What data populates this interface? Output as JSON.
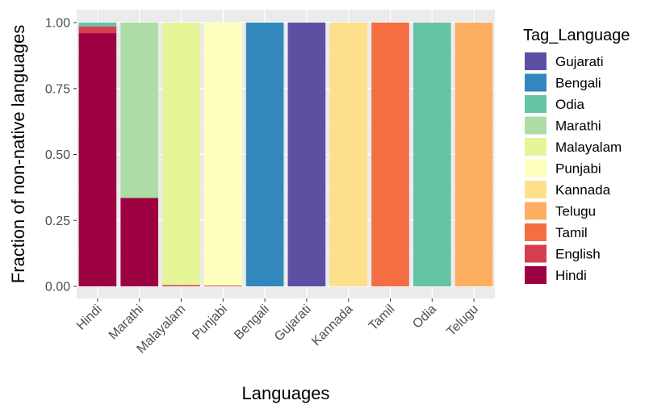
{
  "chart_data": {
    "type": "bar",
    "stacked": true,
    "xlabel": "Languages",
    "ylabel": "Fraction of non-native languages",
    "ylim": [
      0,
      1
    ],
    "yticks": [
      "0.00",
      "0.25",
      "0.50",
      "0.75",
      "1.00"
    ],
    "categories": [
      "Hindi",
      "Marathi",
      "Malayalam",
      "Punjabi",
      "Bengali",
      "Gujarati",
      "Kannada",
      "Tamil",
      "Odia",
      "Telugu"
    ],
    "legend": {
      "title": "Tag_Language",
      "position": "right",
      "entries": [
        "Gujarati",
        "Bengali",
        "Odia",
        "Marathi",
        "Malayalam",
        "Punjabi",
        "Kannada",
        "Telugu",
        "Tamil",
        "English",
        "Hindi"
      ]
    },
    "colors": {
      "Gujarati": "#5e4fa2",
      "Bengali": "#3288bd",
      "Odia": "#66c2a5",
      "Marathi": "#abdda4",
      "Malayalam": "#e6f598",
      "Punjabi": "#ffffbf",
      "Kannada": "#fee08b",
      "Telugu": "#fdae61",
      "Tamil": "#f46d43",
      "English": "#d53e4f",
      "Hindi": "#9e0142"
    },
    "series": [
      {
        "name": "Hindi",
        "values": [
          0.96,
          0.335,
          0.0,
          0.0,
          0,
          0,
          0,
          0,
          0,
          0
        ]
      },
      {
        "name": "English",
        "values": [
          0.025,
          0.0,
          0.005,
          0.003,
          0,
          0,
          0,
          0,
          0,
          0
        ]
      },
      {
        "name": "Tamil",
        "values": [
          0.0,
          0.0,
          0.0,
          0.0,
          0,
          0,
          0,
          1,
          0,
          0
        ]
      },
      {
        "name": "Telugu",
        "values": [
          0.0,
          0.0,
          0.0,
          0.0,
          0,
          0,
          0,
          0,
          0,
          1
        ]
      },
      {
        "name": "Kannada",
        "values": [
          0.0,
          0.0,
          0.0,
          0.0,
          0,
          0,
          1,
          0,
          0,
          0
        ]
      },
      {
        "name": "Punjabi",
        "values": [
          0.0,
          0.0,
          0.0,
          0.997,
          0,
          0,
          0,
          0,
          0,
          0
        ]
      },
      {
        "name": "Malayalam",
        "values": [
          0.0,
          0.0,
          0.995,
          0.0,
          0,
          0,
          0,
          0,
          0,
          0
        ]
      },
      {
        "name": "Marathi",
        "values": [
          0.0,
          0.665,
          0.0,
          0.0,
          0,
          0,
          0,
          0,
          0,
          0
        ]
      },
      {
        "name": "Odia",
        "values": [
          0.015,
          0.0,
          0.0,
          0.0,
          0,
          0,
          0,
          0,
          1,
          0
        ]
      },
      {
        "name": "Bengali",
        "values": [
          0.0,
          0.0,
          0.0,
          0.0,
          1,
          0,
          0,
          0,
          0,
          0
        ]
      },
      {
        "name": "Gujarati",
        "values": [
          0.0,
          0.0,
          0.0,
          0.0,
          0,
          1,
          0,
          0,
          0,
          0
        ]
      }
    ]
  }
}
